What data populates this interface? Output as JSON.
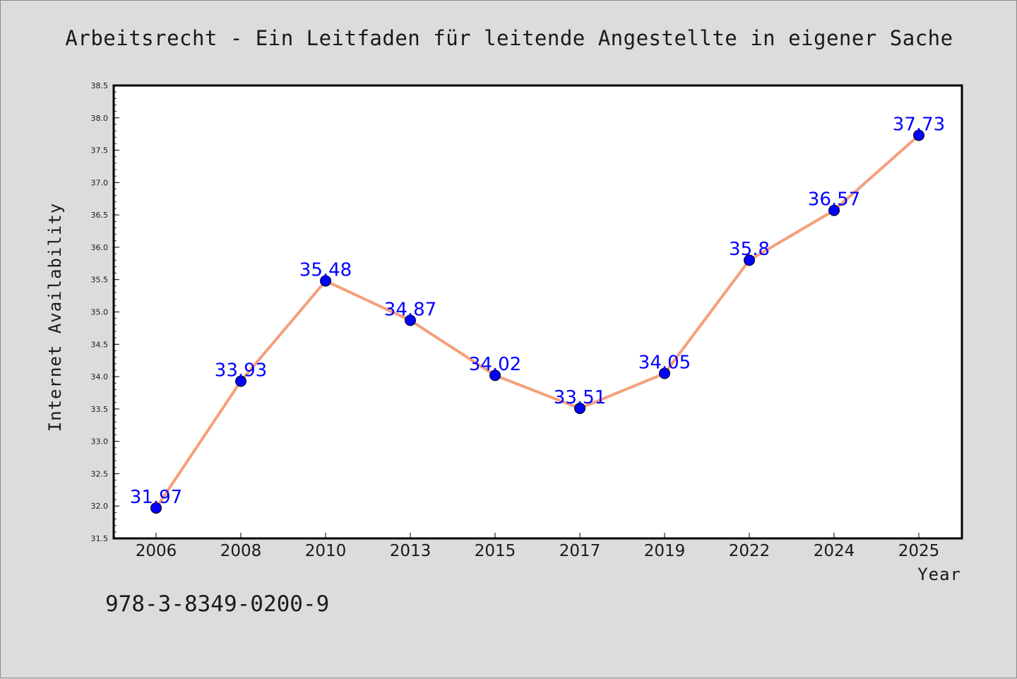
{
  "title": "Arbeitsrecht - Ein Leitfaden für leitende Angestellte in eigener Sache",
  "isbn": "978-3-8349-0200-9",
  "colors": {
    "background": "#dcdcdc",
    "plot_background": "#ffffff",
    "line": "#f4a07c",
    "marker": "#0000ff",
    "data_label": "#0000ff"
  },
  "chart_data": {
    "type": "line",
    "categories": [
      "2006",
      "2008",
      "2010",
      "2013",
      "2015",
      "2017",
      "2019",
      "2022",
      "2024",
      "2025"
    ],
    "values": [
      31.97,
      33.93,
      35.48,
      34.87,
      34.02,
      33.51,
      34.05,
      35.8,
      36.57,
      37.73
    ],
    "data_labels": [
      "31.97",
      "33.93",
      "35.48",
      "34.87",
      "34.02",
      "33.51",
      "34.05",
      "35.8",
      "36.57",
      "37.73"
    ],
    "xlabel": "Year",
    "ylabel": "Internet Availability",
    "ylim": [
      31.5,
      38.5
    ],
    "yticks": [
      "31.5",
      "32.0",
      "32.5",
      "33.0",
      "33.5",
      "34.0",
      "34.5",
      "35.0",
      "35.5",
      "36.0",
      "36.5",
      "37.0",
      "37.5",
      "38.0",
      "38.5"
    ],
    "grid": false,
    "legend": "none"
  }
}
